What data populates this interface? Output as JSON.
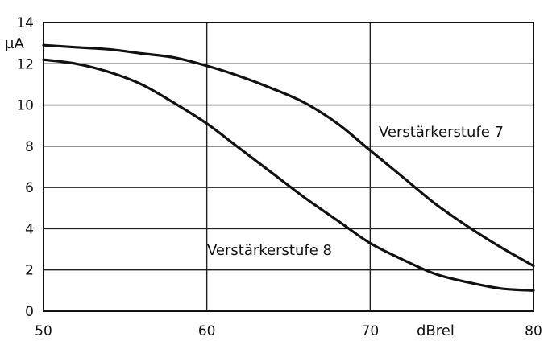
{
  "chart_data": {
    "type": "line",
    "title": "",
    "xlabel": "dBrel",
    "ylabel": "µA",
    "xlim": [
      50,
      80
    ],
    "ylim": [
      0,
      14
    ],
    "x_ticks": [
      50,
      60,
      70,
      80
    ],
    "y_ticks": [
      0,
      2,
      4,
      6,
      8,
      10,
      12,
      14
    ],
    "grid": true,
    "series": [
      {
        "name": "Verstärkerstufe 7",
        "x": [
          50,
          52,
          54,
          56,
          58,
          60,
          62,
          64,
          66,
          68,
          70,
          72,
          74,
          76,
          78,
          80
        ],
        "y": [
          12.9,
          12.8,
          12.7,
          12.5,
          12.3,
          11.9,
          11.4,
          10.8,
          10.1,
          9.1,
          7.8,
          6.5,
          5.2,
          4.1,
          3.1,
          2.2
        ]
      },
      {
        "name": "Verstärkerstufe 8",
        "x": [
          50,
          52,
          54,
          56,
          58,
          60,
          62,
          64,
          66,
          68,
          70,
          72,
          74,
          76,
          78,
          80
        ],
        "y": [
          12.2,
          12.0,
          11.6,
          11.0,
          10.1,
          9.1,
          7.9,
          6.7,
          5.5,
          4.4,
          3.3,
          2.5,
          1.8,
          1.4,
          1.1,
          1.0
        ]
      }
    ]
  }
}
